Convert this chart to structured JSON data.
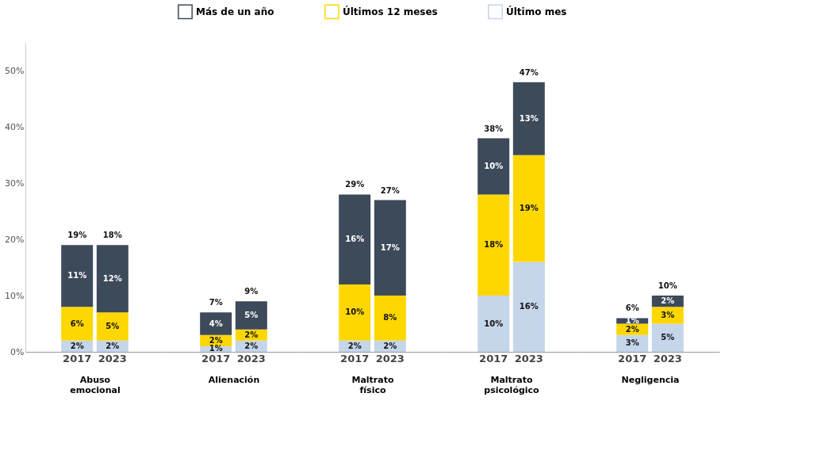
{
  "chart_data": [
    {
      "type": "bar",
      "stacked": true,
      "categories": [
        "2017",
        "2023"
      ],
      "xlabel": "Abuso emocional",
      "ylim": [
        0,
        55
      ],
      "yticks": [
        {
          "value": 0,
          "label": "0%"
        },
        {
          "value": 10,
          "label": "10%"
        },
        {
          "value": 20,
          "label": "20%"
        },
        {
          "value": 30,
          "label": "30%"
        },
        {
          "value": 40,
          "label": "40%"
        },
        {
          "value": 50,
          "label": "50%"
        }
      ],
      "grid": false,
      "legend": "top",
      "totals": [
        "19%",
        "18%"
      ],
      "series": [
        {
          "name": "Último mes",
          "color": "#c5d5ea",
          "values": [
            2,
            2
          ],
          "value_labels": [
            "2%",
            "2%"
          ]
        },
        {
          "name": "Últimos 12 meses",
          "color": "#ffd700",
          "values": [
            6,
            5
          ],
          "value_labels": [
            "6%",
            "5%"
          ]
        },
        {
          "name": "Más de un año",
          "color": "#3d4a5a",
          "values": [
            11,
            12
          ],
          "value_labels": [
            "11%",
            "12%"
          ]
        }
      ]
    },
    {
      "type": "bar",
      "stacked": true,
      "categories": [
        "2017",
        "2023"
      ],
      "xlabel": "Alienación",
      "tick_labels": "x",
      "grid": false,
      "totals": [
        "7%",
        "9%"
      ],
      "series": [
        {
          "color": "#c5d5ea",
          "values": [
            1,
            2
          ],
          "value_labels": [
            "1%",
            "2%"
          ]
        },
        {
          "color": "#ffd700",
          "values": [
            2,
            2
          ],
          "value_labels": [
            "2%",
            "2%"
          ]
        },
        {
          "color": "#3d4a5a",
          "values": [
            4,
            5
          ],
          "value_labels": [
            "4%",
            "5%"
          ]
        }
      ]
    },
    {
      "type": "bar",
      "stacked": true,
      "categories": [
        "2017",
        "2023"
      ],
      "xlabel": "Maltrato físico",
      "tick_labels": "x",
      "grid": false,
      "totals": [
        "29%",
        "27%"
      ],
      "series": [
        {
          "color": "#c5d5ea",
          "values": [
            2,
            2
          ],
          "value_labels": [
            "2%",
            "2%"
          ]
        },
        {
          "color": "#ffd700",
          "values": [
            10,
            8
          ],
          "value_labels": [
            "10%",
            "8%"
          ]
        },
        {
          "color": "#3d4a5a",
          "values": [
            16,
            17
          ],
          "value_labels": [
            "16%",
            "17%"
          ]
        }
      ]
    },
    {
      "type": "bar",
      "stacked": true,
      "categories": [
        "2017",
        "2023"
      ],
      "xlabel": "Maltrato psicológico",
      "tick_labels": "x",
      "grid": false,
      "totals": [
        "38%",
        "47%"
      ],
      "series": [
        {
          "color": "#c5d5ea",
          "values": [
            10,
            16
          ],
          "value_labels": [
            "10%",
            "16%"
          ]
        },
        {
          "color": "#ffd700",
          "values": [
            18,
            19
          ],
          "value_labels": [
            "18%",
            "19%"
          ]
        },
        {
          "color": "#3d4a5a",
          "values": [
            10,
            13
          ],
          "value_labels": [
            "10%",
            "13%"
          ]
        }
      ]
    },
    {
      "type": "bar",
      "stacked": true,
      "categories": [
        "2017",
        "2023"
      ],
      "xlabel": "Negligencia",
      "tick_labels": "x",
      "grid": false,
      "totals": [
        "6%",
        "10%"
      ],
      "series": [
        {
          "color": "#c5d5ea",
          "values": [
            3,
            5
          ],
          "value_labels": [
            "3%",
            "5%"
          ]
        },
        {
          "color": "#ffd700",
          "values": [
            2,
            3
          ],
          "value_labels": [
            "2%",
            "3%"
          ]
        },
        {
          "color": "#3d4a5a",
          "values": [
            1,
            2
          ],
          "value_labels": [
            "1%",
            "2%"
          ]
        }
      ]
    }
  ]
}
